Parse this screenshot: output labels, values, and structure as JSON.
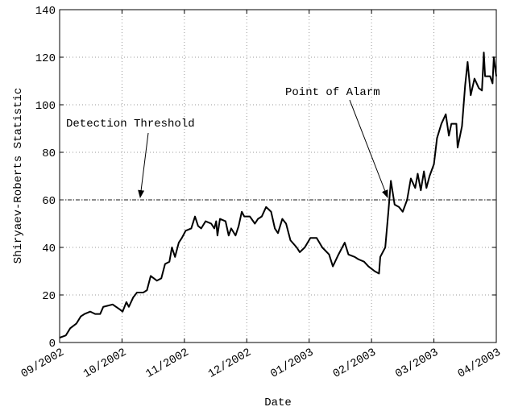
{
  "chart_data": {
    "type": "line",
    "xlabel": "Date",
    "ylabel": "Shiryaev-Roberts Statistic",
    "xlim": [
      0,
      7
    ],
    "xticks": [
      {
        "value": 0,
        "label": "09/2002"
      },
      {
        "value": 1,
        "label": "10/2002"
      },
      {
        "value": 2,
        "label": "11/2002"
      },
      {
        "value": 3,
        "label": "12/2002"
      },
      {
        "value": 4,
        "label": "01/2003"
      },
      {
        "value": 5,
        "label": "02/2003"
      },
      {
        "value": 6,
        "label": "03/2003"
      },
      {
        "value": 7,
        "label": "04/2003"
      }
    ],
    "ylim": [
      0,
      140
    ],
    "yticks": [
      0,
      20,
      40,
      60,
      80,
      100,
      120,
      140
    ],
    "grid": true,
    "threshold": 60,
    "annotations": [
      "Detection Threshold",
      "Point of Alarm"
    ],
    "x": [
      0,
      0.1,
      0.17,
      0.27,
      0.34,
      0.4,
      0.49,
      0.57,
      0.65,
      0.7,
      0.85,
      0.96,
      1.01,
      1.07,
      1.11,
      1.18,
      1.24,
      1.34,
      1.4,
      1.46,
      1.56,
      1.63,
      1.69,
      1.76,
      1.8,
      1.85,
      1.91,
      1.96,
      2.02,
      2.11,
      2.17,
      2.22,
      2.27,
      2.34,
      2.43,
      2.48,
      2.51,
      2.53,
      2.57,
      2.66,
      2.71,
      2.75,
      2.82,
      2.87,
      2.92,
      2.96,
      3.05,
      3.13,
      3.18,
      3.24,
      3.31,
      3.39,
      3.45,
      3.5,
      3.57,
      3.63,
      3.7,
      3.8,
      3.85,
      3.93,
      4.02,
      4.12,
      4.21,
      4.32,
      4.38,
      4.47,
      4.53,
      4.57,
      4.63,
      4.73,
      4.79,
      4.88,
      4.95,
      5.05,
      5.12,
      5.14,
      5.22,
      5.27,
      5.31,
      5.37,
      5.44,
      5.5,
      5.57,
      5.63,
      5.7,
      5.74,
      5.79,
      5.84,
      5.88,
      5.93,
      6.0,
      6.05,
      6.12,
      6.19,
      6.24,
      6.28,
      6.36,
      6.38,
      6.45,
      6.5,
      6.54,
      6.59,
      6.65,
      6.72,
      6.77,
      6.8,
      6.82,
      6.9,
      6.94,
      6.96,
      7.0
    ],
    "series": [
      {
        "name": "Shiryaev-Roberts Statistic",
        "color": "#000000",
        "values": [
          2,
          3,
          6,
          8,
          11,
          12,
          13,
          12,
          12,
          15,
          16,
          14,
          13,
          17,
          15,
          19,
          21,
          21,
          22,
          28,
          26,
          27,
          33,
          34,
          40,
          36,
          42,
          44,
          47,
          48,
          53,
          49,
          48,
          51,
          50,
          48,
          51,
          45,
          52,
          51,
          45,
          48,
          45,
          49,
          55,
          53,
          53,
          50,
          52,
          53,
          57,
          55,
          48,
          46,
          52,
          50,
          43,
          40,
          38,
          40,
          44,
          44,
          40,
          37,
          32,
          37,
          40,
          42,
          37,
          36,
          35,
          34,
          32,
          30,
          29,
          36,
          40,
          55,
          68,
          58,
          57,
          55,
          60,
          69,
          65,
          71,
          64,
          72,
          65,
          70,
          75,
          86,
          92,
          96,
          87,
          92,
          92,
          82,
          91,
          108,
          118,
          104,
          111,
          107,
          106,
          122,
          112,
          112,
          109,
          120,
          112
        ]
      }
    ]
  }
}
